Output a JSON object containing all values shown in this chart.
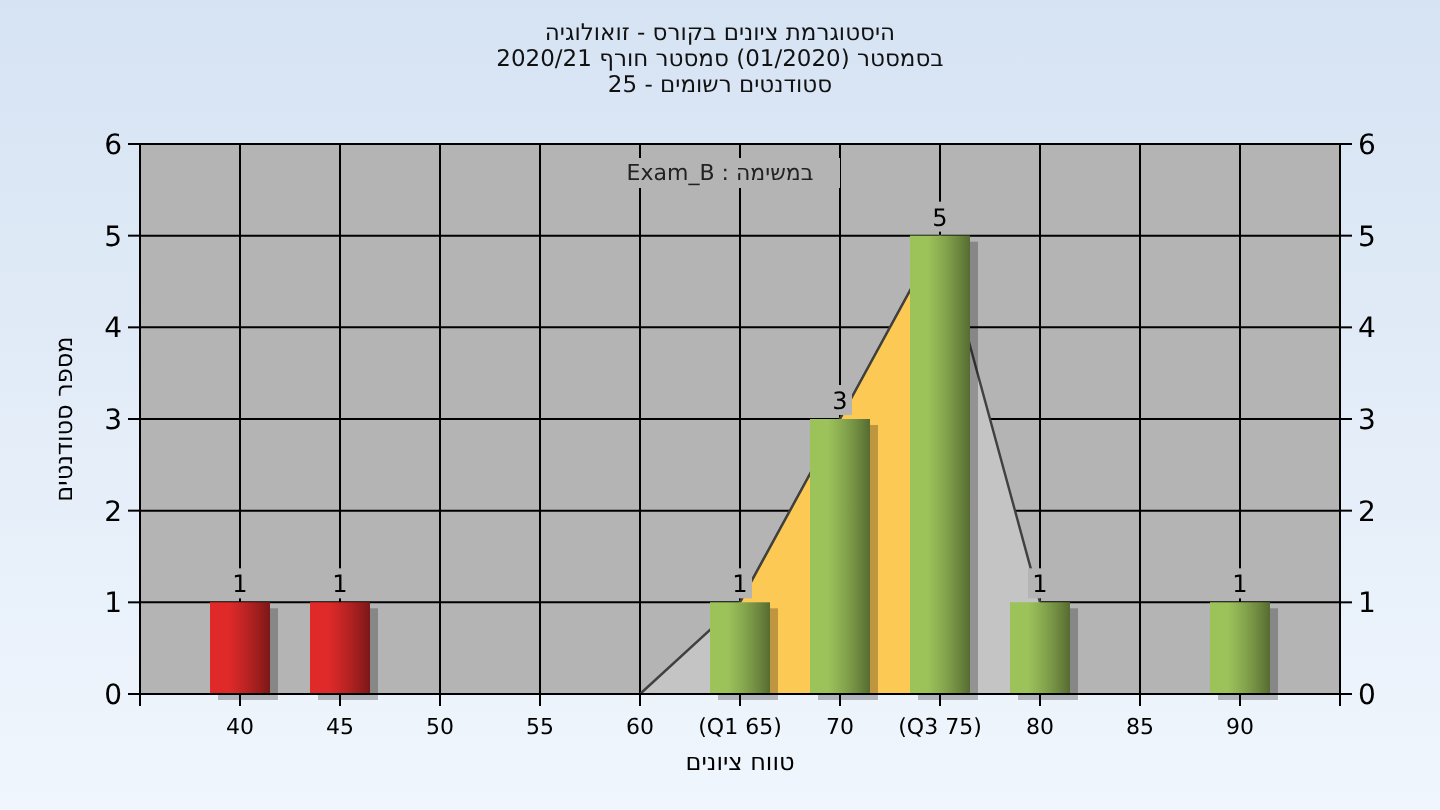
{
  "chart_data": {
    "type": "bar",
    "title": "היסטוגרמת ציונים בקורס - זואולוגיה\nבסמסטר  (01/2020)  סמסטר חורף 2020/21\nסטודנטים רשומים - 25",
    "xlabel": "טווח ציונים",
    "ylabel": "מספר סטודנטים",
    "annotations": [
      "במשימה : Exam_B"
    ],
    "categories": [
      "40",
      "45",
      "50",
      "55",
      "60",
      "(Q1 65)",
      "70",
      "(Q3 75)",
      "80",
      "85",
      "90"
    ],
    "series": [
      {
        "type": "area",
        "color": "#c4c4c4",
        "values": [
          null,
          null,
          null,
          null,
          0,
          1,
          3,
          5,
          1,
          null,
          null
        ]
      },
      {
        "type": "area",
        "color": "#fdc955",
        "values": [
          null,
          null,
          null,
          null,
          null,
          1,
          3,
          5,
          null,
          null,
          null
        ]
      },
      {
        "colors": [
          "#e02a2a",
          "#e02a2a",
          "#9cc25a",
          "#9cc25a",
          "#9cc25a",
          "#9cc25a",
          "#9cc25a",
          "#9cc25a",
          "#9cc25a",
          "#9cc25a",
          "#9cc25a"
        ],
        "values": [
          1,
          1,
          0,
          0,
          0,
          1,
          3,
          5,
          1,
          0,
          1
        ],
        "value_labels": [
          "1",
          "1",
          null,
          null,
          null,
          "1",
          "3",
          "5",
          "1",
          null,
          "1"
        ]
      }
    ],
    "ylim": [
      0,
      6
    ],
    "yticks": [
      0,
      1,
      2,
      3,
      4,
      5,
      6
    ],
    "y2lim": [
      0,
      6
    ],
    "y2ticks": [
      0,
      1,
      2,
      3,
      4,
      5,
      6
    ],
    "grid": true
  }
}
